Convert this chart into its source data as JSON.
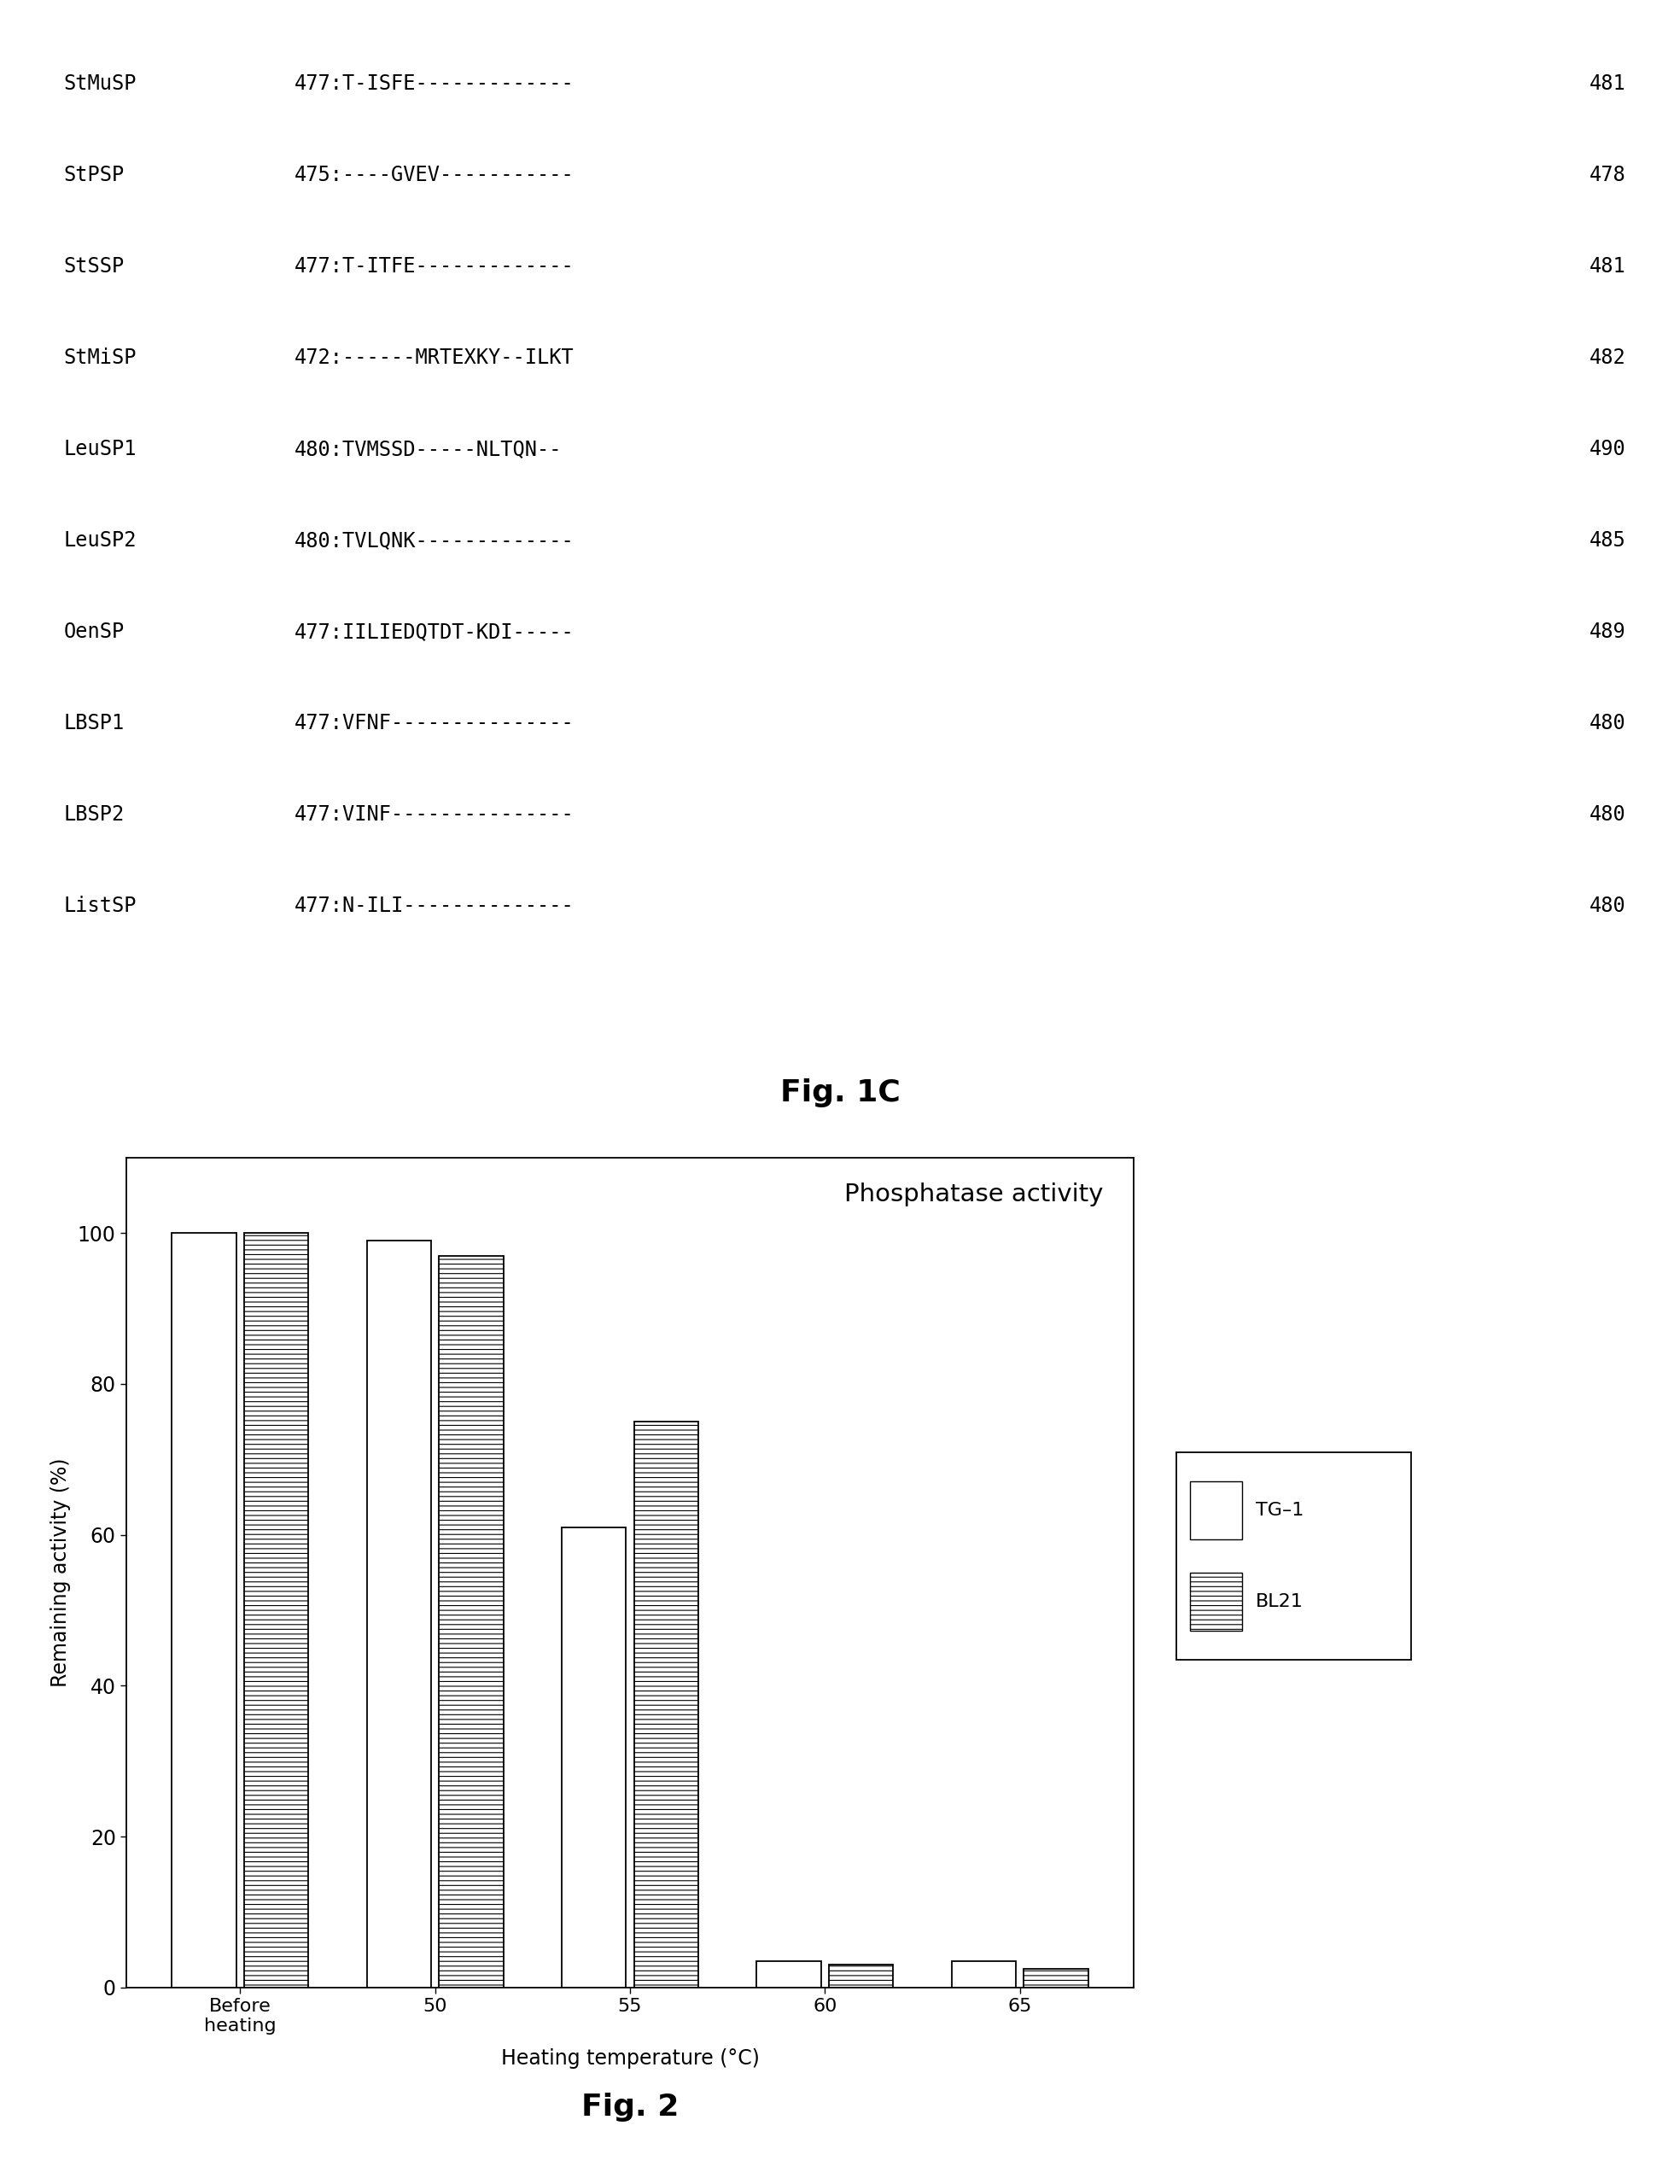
{
  "fig1c_rows": [
    {
      "label": "StMuSP",
      "sequence": "477:T-ISFE-------------",
      "end_num": "481"
    },
    {
      "label": "StPSP",
      "sequence": "475:----GVEV-----------",
      "end_num": "478"
    },
    {
      "label": "StSSP",
      "sequence": "477:T-ITFE-------------",
      "end_num": "481"
    },
    {
      "label": "StMiSP",
      "sequence": "472:------MRTEXKY--ILKT",
      "end_num": "482"
    },
    {
      "label": "LeuSP1",
      "sequence": "480:TVMSSD-----NLTQN--",
      "end_num": "490"
    },
    {
      "label": "LeuSP2",
      "sequence": "480:TVLQNK-------------",
      "end_num": "485"
    },
    {
      "label": "OenSP",
      "sequence": "477:IILIEDQTDT-KDI-----",
      "end_num": "489"
    },
    {
      "label": "LBSP1",
      "sequence": "477:VFNF---------------",
      "end_num": "480"
    },
    {
      "label": "LBSP2",
      "sequence": "477:VINF---------------",
      "end_num": "480"
    },
    {
      "label": "ListSP",
      "sequence": "477:N-ILI--------------",
      "end_num": "480"
    }
  ],
  "fig1c_caption": "Fig. 1C",
  "bar_categories": [
    "Before\nheating",
    "50",
    "55",
    "60",
    "65"
  ],
  "tg1_values": [
    100,
    99,
    61,
    3.5,
    3.5
  ],
  "bl21_values": [
    100,
    97,
    75,
    3.0,
    2.5
  ],
  "ylabel": "Remaining activity (%)",
  "xlabel": "Heating temperature (°C)",
  "chart_title": "Phosphatase activity",
  "fig2_caption": "Fig. 2",
  "bg_color": "#ffffff",
  "bar_color_tg1": "#ffffff",
  "bar_edge_color": "#000000",
  "yticks": [
    0,
    20,
    40,
    60,
    80,
    100
  ],
  "ylim": [
    0,
    110
  ],
  "legend_tg1": "□TG–1",
  "legend_bl21": "⊞BL21"
}
